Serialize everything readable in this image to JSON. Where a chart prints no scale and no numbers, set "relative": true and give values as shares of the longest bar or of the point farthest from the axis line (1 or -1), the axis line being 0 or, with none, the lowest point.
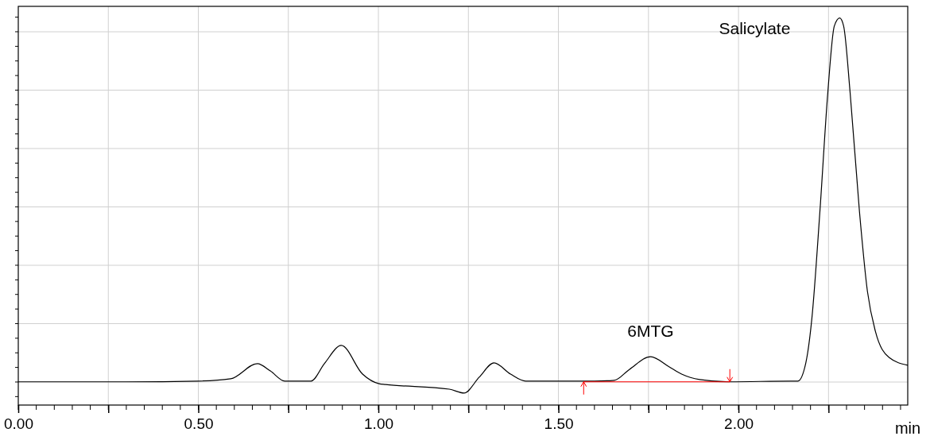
{
  "chart_data": {
    "type": "line",
    "relative": true,
    "xlabel": "min",
    "xlim": [
      0,
      2.47
    ],
    "xticks": [
      {
        "value": 0,
        "label": "0.00"
      },
      {
        "value": 0.25,
        "label": null
      },
      {
        "value": 0.5,
        "label": "0.50"
      },
      {
        "value": 0.75,
        "label": null
      },
      {
        "value": 1,
        "label": "1.00"
      },
      {
        "value": 1.25,
        "label": null
      },
      {
        "value": 1.5,
        "label": "1.50"
      },
      {
        "value": 1.75,
        "label": null
      },
      {
        "value": 2,
        "label": "2.00"
      },
      {
        "value": 2.25,
        "label": null
      }
    ],
    "grid": true,
    "series": [
      {
        "color": "#000000",
        "x": [
          0,
          0.3,
          0.5,
          0.59,
          0.664,
          0.7,
          0.74,
          0.813,
          0.85,
          0.897,
          0.956,
          1.002,
          1.02,
          1.197,
          1.238,
          1.28,
          1.321,
          1.367,
          1.409,
          1.6,
          1.655,
          1.697,
          1.756,
          1.807,
          1.842,
          1.892,
          1.976,
          2.145,
          2.165,
          2.187,
          2.204,
          2.226,
          2.248,
          2.266,
          2.281,
          2.292,
          2.31,
          2.336,
          2.358,
          2.38,
          2.418,
          2.47
        ],
        "values": [
          0.06,
          0.06,
          0.062,
          0.068,
          0.107,
          0.088,
          0.062,
          0.062,
          0.107,
          0.154,
          0.08,
          0.055,
          0.053,
          0.041,
          0.031,
          0.072,
          0.109,
          0.08,
          0.062,
          0.062,
          0.064,
          0.092,
          0.125,
          0.099,
          0.08,
          0.066,
          0.06,
          0.062,
          0.062,
          0.109,
          0.226,
          0.499,
          0.807,
          0.979,
          1.0,
          0.979,
          0.807,
          0.499,
          0.294,
          0.191,
          0.123,
          0.103
        ]
      },
      {
        "color": "#ff0000",
        "x": [
          1.57,
          1.976
        ],
        "values": [
          0.06,
          0.06
        ]
      }
    ],
    "annotations": [
      {
        "text": "Salicylate",
        "x": 2.281,
        "y": 1.0
      },
      {
        "text": "6MTG",
        "x": 1.756,
        "y": 0.125
      }
    ]
  }
}
